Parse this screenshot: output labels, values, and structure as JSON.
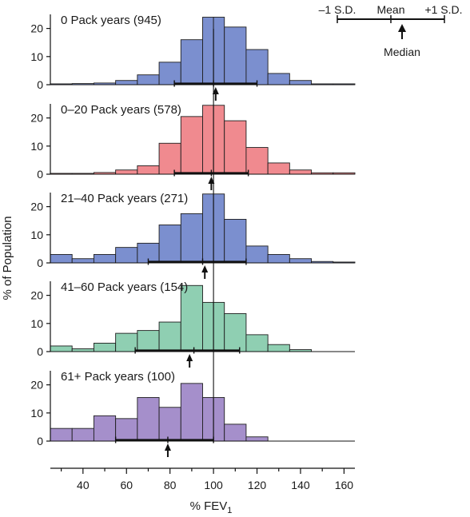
{
  "chart_data": {
    "type": "bar",
    "ylabel": "% of Population",
    "xlabel_main": "% FEV",
    "xlabel_sub": "1",
    "xlim": [
      25,
      165
    ],
    "ylim": [
      0,
      25
    ],
    "x_ticks": [
      40,
      60,
      80,
      100,
      120,
      140,
      160
    ],
    "y_ticks": [
      0,
      10,
      20
    ],
    "reference_line_x": 100,
    "bins": [
      [
        25,
        35
      ],
      [
        35,
        45
      ],
      [
        45,
        55
      ],
      [
        55,
        65
      ],
      [
        65,
        75
      ],
      [
        75,
        85
      ],
      [
        85,
        95
      ],
      [
        95,
        100
      ],
      [
        100,
        105
      ],
      [
        105,
        115
      ],
      [
        115,
        125
      ],
      [
        125,
        135
      ],
      [
        135,
        145
      ],
      [
        145,
        155
      ],
      [
        155,
        165
      ]
    ],
    "legend": {
      "minus_sd": "–1 S.D.",
      "mean": "Mean",
      "plus_sd": "+1 S.D.",
      "median": "Median"
    },
    "panels": [
      {
        "title": "0 Pack years (945)",
        "color": "#7b8fcf",
        "values": [
          0.3,
          0.4,
          0.6,
          1.5,
          3.5,
          8,
          16,
          24,
          24,
          20.5,
          12.5,
          4,
          1.5,
          0.3,
          0.3
        ],
        "sd_range": [
          82,
          120
        ],
        "mean": 100,
        "median": 101
      },
      {
        "title": "0–20 Pack years (578)",
        "color": "#f08a8f",
        "values": [
          0.3,
          0.3,
          0.6,
          1.5,
          3,
          11,
          20.5,
          24.5,
          24.5,
          19,
          9.5,
          4,
          1.5,
          0.5,
          0.5
        ],
        "sd_range": [
          82,
          116
        ],
        "mean": 99,
        "median": 99
      },
      {
        "title": "21–40 Pack years (271)",
        "color": "#7b8fcf",
        "values": [
          3,
          1.5,
          3,
          5.5,
          7,
          13.5,
          17.5,
          24.5,
          24.5,
          15.5,
          6,
          3,
          1.5,
          0.5,
          0.3
        ],
        "sd_range": [
          70,
          115
        ],
        "mean": 95,
        "median": 96
      },
      {
        "title": "41–60 Pack years (154)",
        "color": "#8fcfb2",
        "values": [
          2,
          1,
          3,
          6.5,
          7.5,
          10.5,
          23.5,
          17.5,
          17.5,
          13.5,
          6,
          2.5,
          0.7,
          0,
          0
        ],
        "sd_range": [
          64,
          112
        ],
        "mean": 91,
        "median": 89
      },
      {
        "title": "61+ Pack years (100)",
        "color": "#a58fcb",
        "values": [
          4.5,
          4.5,
          9,
          8,
          15.5,
          12,
          20.5,
          15.5,
          15.5,
          6,
          1.5,
          0,
          0,
          0,
          0
        ],
        "sd_range": [
          55,
          100
        ],
        "mean": 79,
        "median": 79
      }
    ]
  }
}
